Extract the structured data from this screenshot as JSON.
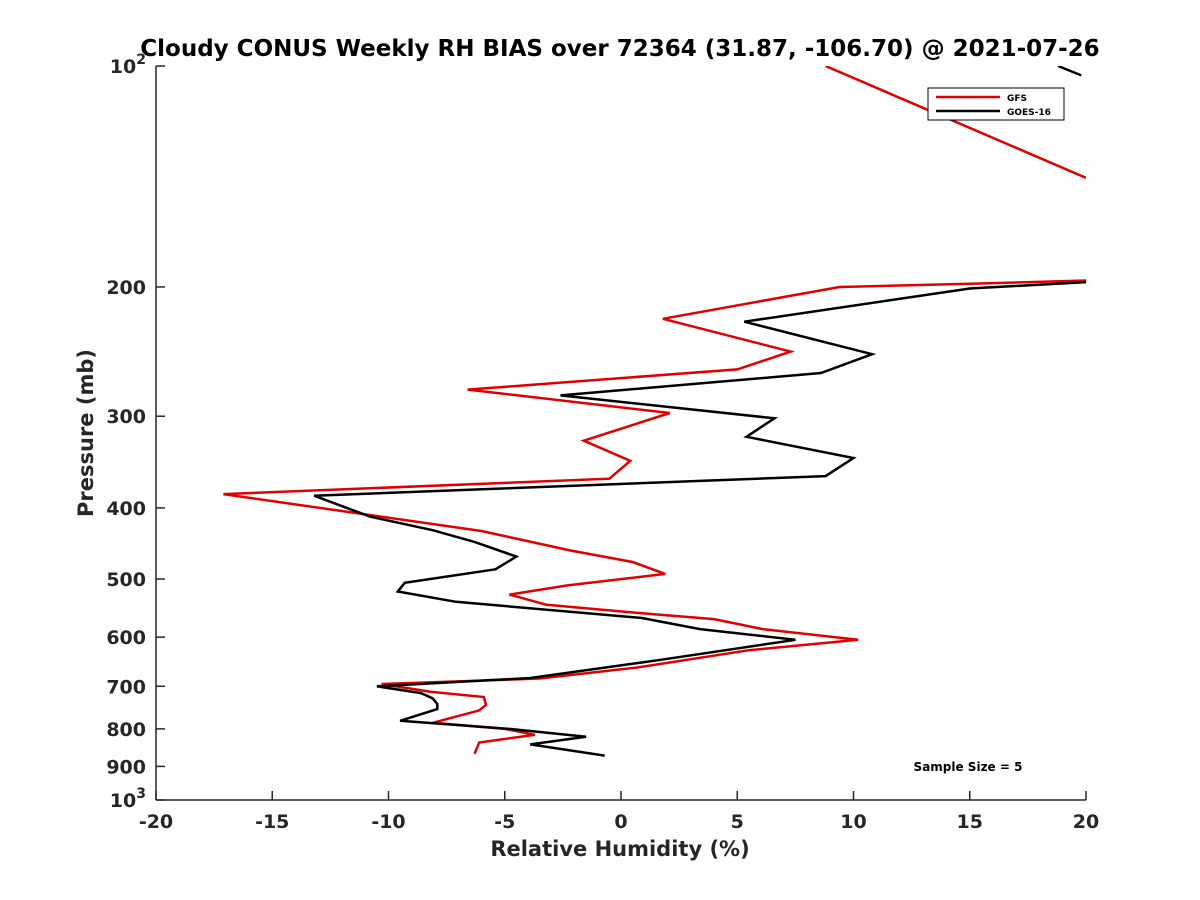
{
  "chart_data": {
    "type": "line",
    "title": "Cloudy CONUS Weekly RH BIAS over 72364 (31.87, -106.70) @ 2021-07-26",
    "xlabel": "Relative Humidity (%)",
    "ylabel": "Pressure (mb)",
    "xlim": [
      -20,
      20
    ],
    "ylim": [
      100,
      1000
    ],
    "y_scale": "log",
    "y_reversed": true,
    "grid": false,
    "legend_position": "top-right",
    "x_ticks": [
      "-20",
      "-15",
      "-10",
      "-5",
      "0",
      "5",
      "10",
      "15",
      "20"
    ],
    "x_tick_values": [
      -20,
      -15,
      -10,
      -5,
      0,
      5,
      10,
      15,
      20
    ],
    "y_ticks": [
      {
        "value": 100,
        "base": "10",
        "exp": "2"
      },
      {
        "value": 200,
        "label": "200"
      },
      {
        "value": 300,
        "label": "300"
      },
      {
        "value": 400,
        "label": "400"
      },
      {
        "value": 500,
        "label": "500"
      },
      {
        "value": 600,
        "label": "600"
      },
      {
        "value": 700,
        "label": "700"
      },
      {
        "value": 800,
        "label": "800"
      },
      {
        "value": 900,
        "label": "900"
      },
      {
        "value": 1000,
        "base": "10",
        "exp": "3"
      }
    ],
    "annotation": "Sample Size = 5",
    "series": [
      {
        "name": "GFS",
        "color": "#e00000",
        "points": [
          [
            8.8,
            100
          ],
          [
            20,
            142
          ],
          [
            20,
            196
          ],
          [
            15,
            198
          ],
          [
            9.4,
            200
          ],
          [
            1.8,
            221
          ],
          [
            7.3,
            245
          ],
          [
            5,
            259
          ],
          [
            -6.6,
            276
          ],
          [
            2.1,
            297
          ],
          [
            -1.6,
            324
          ],
          [
            0.4,
            345
          ],
          [
            -0.5,
            365
          ],
          [
            -17.1,
            383
          ],
          [
            -6,
            430
          ],
          [
            -2.2,
            457
          ],
          [
            0.5,
            474
          ],
          [
            1.9,
            492
          ],
          [
            -2.3,
            510
          ],
          [
            -4.8,
            525
          ],
          [
            -3.2,
            542
          ],
          [
            0.7,
            556
          ],
          [
            4,
            567
          ],
          [
            6.1,
            585
          ],
          [
            10.2,
            605
          ],
          [
            5.5,
            625
          ],
          [
            0.7,
            660
          ],
          [
            -3.5,
            683
          ],
          [
            -10.3,
            695
          ],
          [
            -8.2,
            712
          ],
          [
            -5.9,
            724
          ],
          [
            -5.8,
            742
          ],
          [
            -6.1,
            755
          ],
          [
            -8.1,
            785
          ],
          [
            -5,
            800
          ],
          [
            -3.7,
            815
          ],
          [
            -6.1,
            835
          ],
          [
            -6.3,
            865
          ]
        ]
      },
      {
        "name": "GOES-16",
        "color": "#000000",
        "points": [
          [
            18.8,
            100
          ],
          [
            19.8,
            103
          ],
          [
            20,
            197
          ],
          [
            15,
            201
          ],
          [
            5.3,
            223
          ],
          [
            10.8,
            247
          ],
          [
            8.6,
            262
          ],
          [
            -2.6,
            281
          ],
          [
            6.6,
            302
          ],
          [
            5.4,
            320
          ],
          [
            10,
            342
          ],
          [
            8.8,
            362
          ],
          [
            -13.2,
            385
          ],
          [
            -10.8,
            411
          ],
          [
            -8.1,
            429
          ],
          [
            -6.3,
            445
          ],
          [
            -4.5,
            466
          ],
          [
            -5.4,
            485
          ],
          [
            -9.3,
            506
          ],
          [
            -9.6,
            520
          ],
          [
            -7.1,
            537
          ],
          [
            0.9,
            565
          ],
          [
            3.4,
            585
          ],
          [
            7.5,
            605
          ],
          [
            1.6,
            645
          ],
          [
            -3.9,
            682
          ],
          [
            -10.5,
            700
          ],
          [
            -8.6,
            715
          ],
          [
            -8.1,
            727
          ],
          [
            -7.9,
            740
          ],
          [
            -7.9,
            752
          ],
          [
            -9.5,
            780
          ],
          [
            -4.8,
            800
          ],
          [
            -1.5,
            820
          ],
          [
            -3.9,
            840
          ],
          [
            -0.7,
            870
          ]
        ]
      }
    ]
  }
}
